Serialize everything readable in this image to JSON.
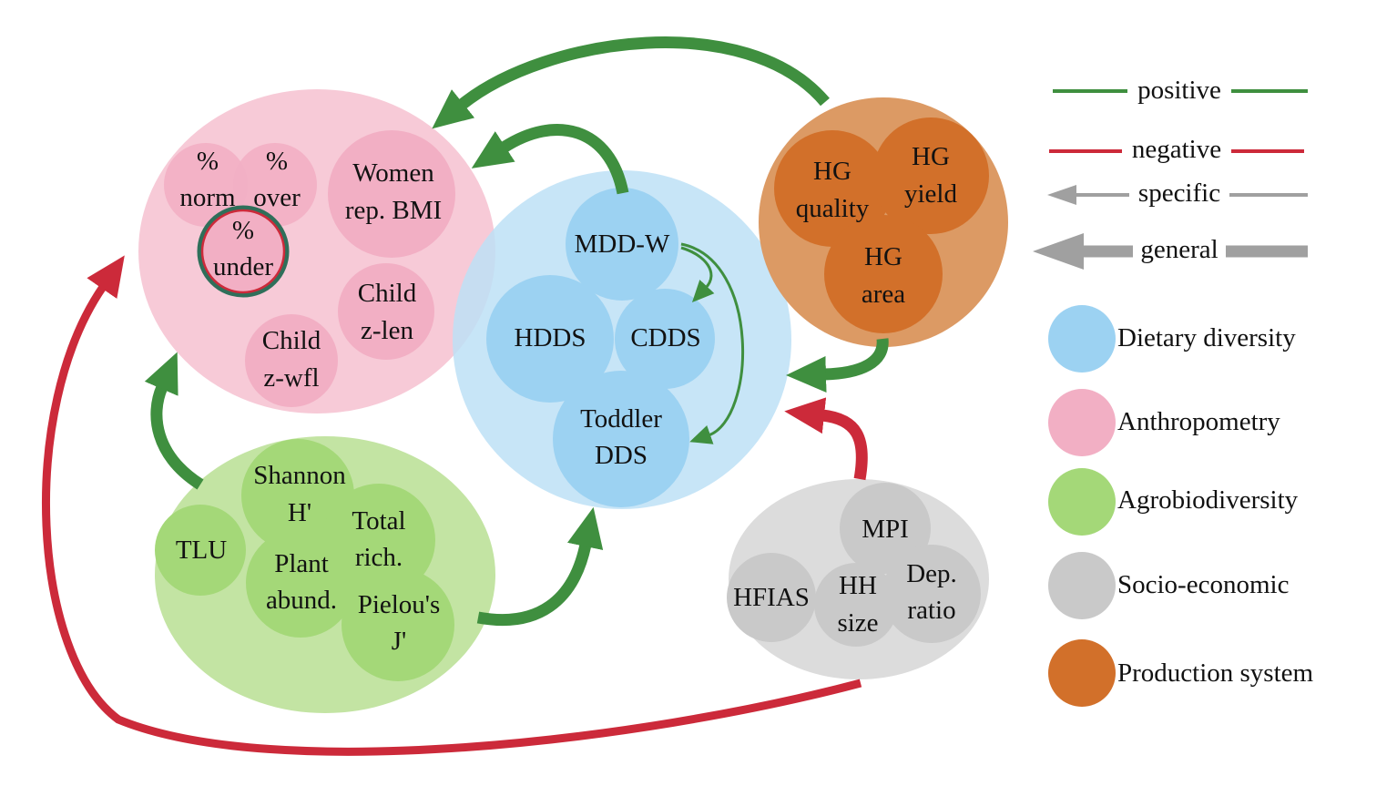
{
  "colors": {
    "positive": "#3f8f3f",
    "negative": "#cc2a3a",
    "neutral": "#a0a0a0",
    "dietary": "#9cd2f2",
    "dietary_bg": "#bde0f6",
    "anthro": "#f2afc4",
    "anthro_bg": "#f7cad7",
    "agro": "#a4d878",
    "agro_bg": "#c3e4a3",
    "socio": "#c9c9c9",
    "socio_bg": "#dcdcdc",
    "production": "#d2702a",
    "production_bg": "#dc9a64"
  },
  "anthropometry": {
    "norm": [
      "%",
      "norm"
    ],
    "over": [
      "%",
      "over"
    ],
    "under": [
      "%",
      "under"
    ],
    "women_bmi": [
      "Women",
      "rep. BMI"
    ],
    "child_zlen": [
      "Child",
      "z-len"
    ],
    "child_zwfl": [
      "Child",
      "z-wfl"
    ]
  },
  "dietary": {
    "mddw": "MDD-W",
    "hdds": "HDDS",
    "cdds": "CDDS",
    "toddler": [
      "Toddler",
      "DDS"
    ]
  },
  "production": {
    "quality": [
      "HG",
      "quality"
    ],
    "yield": [
      "HG",
      "yield"
    ],
    "area": [
      "HG",
      "area"
    ]
  },
  "agro": {
    "shannon": [
      "Shannon",
      "H'"
    ],
    "tlu": "TLU",
    "total_rich": [
      "Total",
      "rich."
    ],
    "plant_abund": [
      "Plant",
      "abund."
    ],
    "pielou": [
      "Pielou's",
      "J'"
    ]
  },
  "socio": {
    "mpi": "MPI",
    "hfias": "HFIAS",
    "hh_size": [
      "HH",
      "size"
    ],
    "dep_ratio": [
      "Dep.",
      "ratio"
    ]
  },
  "legend": {
    "positive": "positive",
    "negative": "negative",
    "specific": "specific",
    "general": "general",
    "dietary": "Dietary diversity",
    "anthro": "Anthropometry",
    "agro": "Agrobiodiversity",
    "socio": "Socio-economic",
    "production": "Production system"
  }
}
